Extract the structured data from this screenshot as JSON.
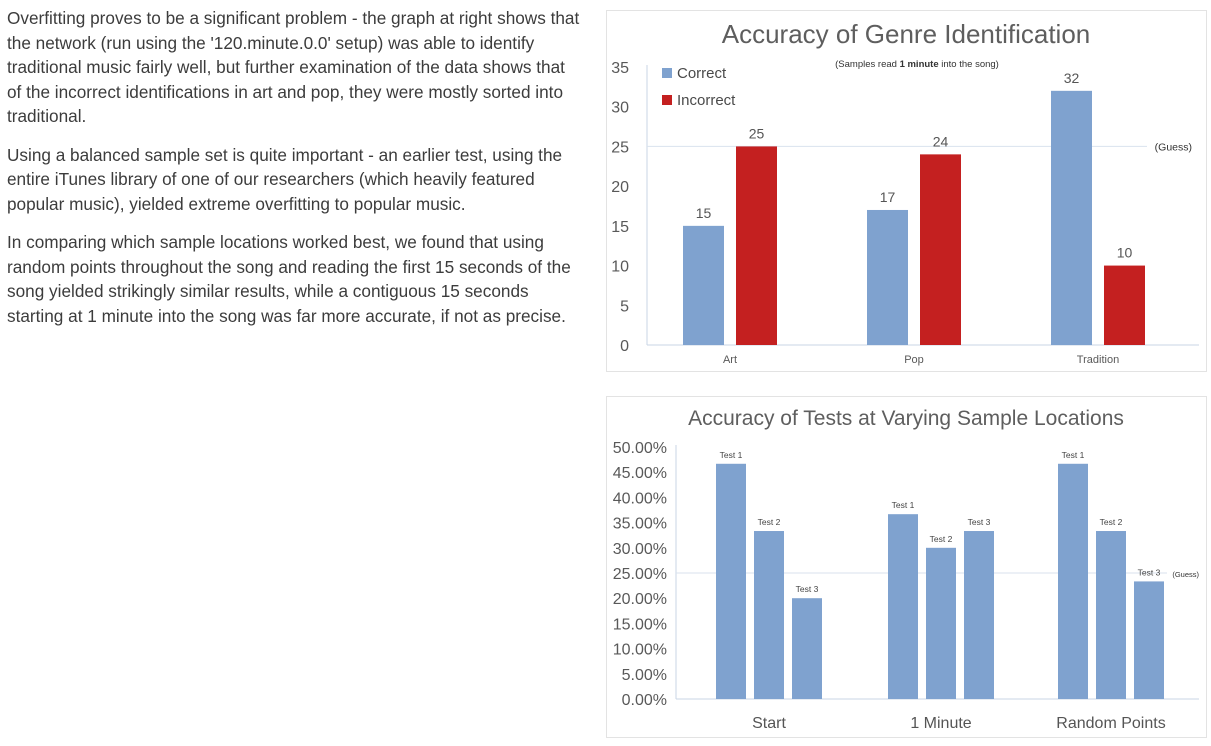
{
  "text": {
    "paragraphs": [
      "Overfitting proves to be a significant problem - the graph at right shows that the network (run using the '120.minute.0.0' setup) was able to identify traditional music fairly well, but further examination of the data shows that of the incorrect identifications in art and pop, they were mostly sorted into traditional.",
      "Using a balanced sample set is quite important - an earlier test, using the entire iTunes library of one of our researchers (which heavily featured popular music), yielded extreme overfitting to popular music.",
      "In comparing which sample locations worked best, we found that using random points throughout the song and reading the first 15 seconds of the song yielded strikingly similar results, while a contiguous 15 seconds starting at 1 minute into the song was far more accurate, if not as precise."
    ]
  },
  "colors": {
    "correct": "#7fa2cf",
    "incorrect": "#c42020",
    "axis_text": "#595959",
    "gridline": "#d9e2ee"
  },
  "chart_data": [
    {
      "type": "bar",
      "title": "Accuracy of Genre Identification",
      "subtitle_prefix": "(Samples read ",
      "subtitle_bold": "1 minute",
      "subtitle_suffix": " into the song)",
      "categories": [
        "Art",
        "Pop",
        "Tradition"
      ],
      "series": [
        {
          "name": "Correct",
          "values": [
            15,
            17,
            32
          ]
        },
        {
          "name": "Incorrect",
          "values": [
            25,
            24,
            10
          ]
        }
      ],
      "ylim": [
        0,
        35
      ],
      "yticks": [
        "0",
        "5",
        "10",
        "15",
        "20",
        "25",
        "30",
        "35"
      ],
      "reference_line": {
        "value": 25,
        "label": "(Guess)"
      },
      "legend_position": "top-left",
      "grid": false
    },
    {
      "type": "bar",
      "title": "Accuracy of Tests at Varying Sample Locations",
      "categories": [
        "Start",
        "1 Minute",
        "Random Points"
      ],
      "bar_labels": [
        "Test 1",
        "Test 2",
        "Test 3"
      ],
      "values": [
        [
          0.4667,
          0.3333,
          0.2
        ],
        [
          0.3667,
          0.3,
          0.3333
        ],
        [
          0.4667,
          0.3333,
          0.2333
        ]
      ],
      "ylim": [
        0,
        0.5
      ],
      "yticks": [
        "0.00%",
        "5.00%",
        "10.00%",
        "15.00%",
        "20.00%",
        "25.00%",
        "30.00%",
        "35.00%",
        "40.00%",
        "45.00%",
        "50.00%"
      ],
      "reference_line": {
        "value": 0.25,
        "label": "(Guess)"
      },
      "grid": false
    }
  ]
}
